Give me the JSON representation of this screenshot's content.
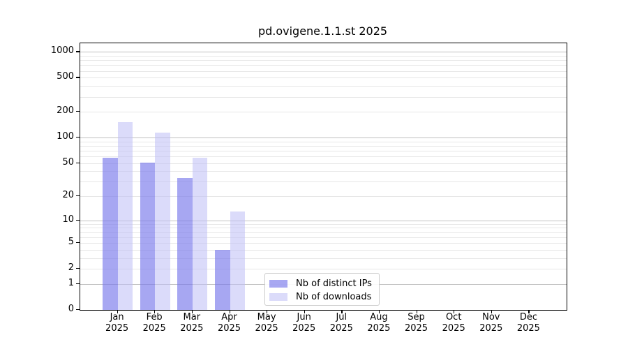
{
  "chart_data": {
    "type": "bar",
    "title": "pd.ovigene.1.1.st 2025",
    "x": {
      "categories": [
        "Jan",
        "Feb",
        "Mar",
        "Apr",
        "May",
        "Jun",
        "Jul",
        "Aug",
        "Sep",
        "Oct",
        "Nov",
        "Dec"
      ],
      "year": "2025"
    },
    "series": [
      {
        "name": "Nb of distinct IPs",
        "color": "rgba(120,120,235,0.65)",
        "solid_color": "#a7a7f2",
        "values": [
          58,
          51,
          33,
          4,
          0,
          0,
          0,
          0,
          0,
          0,
          0,
          0
        ]
      },
      {
        "name": "Nb of downloads",
        "color": "rgba(190,190,245,0.55)",
        "solid_color": "#dcdcf8",
        "values": [
          152,
          114,
          58,
          13,
          0,
          0,
          0,
          0,
          0,
          0,
          0,
          0
        ]
      }
    ],
    "yscale": "log10(1+value)",
    "ylim": [
      0,
      1200
    ],
    "yticks": [
      {
        "value": 1000,
        "label": "1000"
      },
      {
        "value": 500,
        "label": "500"
      },
      {
        "value": 200,
        "label": "200"
      },
      {
        "value": 100,
        "label": "100"
      },
      {
        "value": 50,
        "label": "50"
      },
      {
        "value": 20,
        "label": "20"
      },
      {
        "value": 10,
        "label": "10"
      },
      {
        "value": 5,
        "label": "5"
      },
      {
        "value": 2,
        "label": "2"
      },
      {
        "value": 1,
        "label": "1"
      },
      {
        "value": 0,
        "label": "0"
      }
    ],
    "grid": {
      "major_values": [
        1,
        10,
        100,
        1000
      ],
      "minor_values": [
        2,
        3,
        4,
        5,
        6,
        7,
        8,
        9,
        20,
        30,
        40,
        50,
        60,
        70,
        80,
        90,
        200,
        300,
        400,
        500,
        600,
        700,
        800,
        900
      ],
      "major_color": "#c0c0c0",
      "minor_color": "#e7e7e7"
    },
    "legend": {
      "location": "lower center",
      "entries": [
        "Nb of distinct IPs",
        "Nb of downloads"
      ]
    }
  }
}
